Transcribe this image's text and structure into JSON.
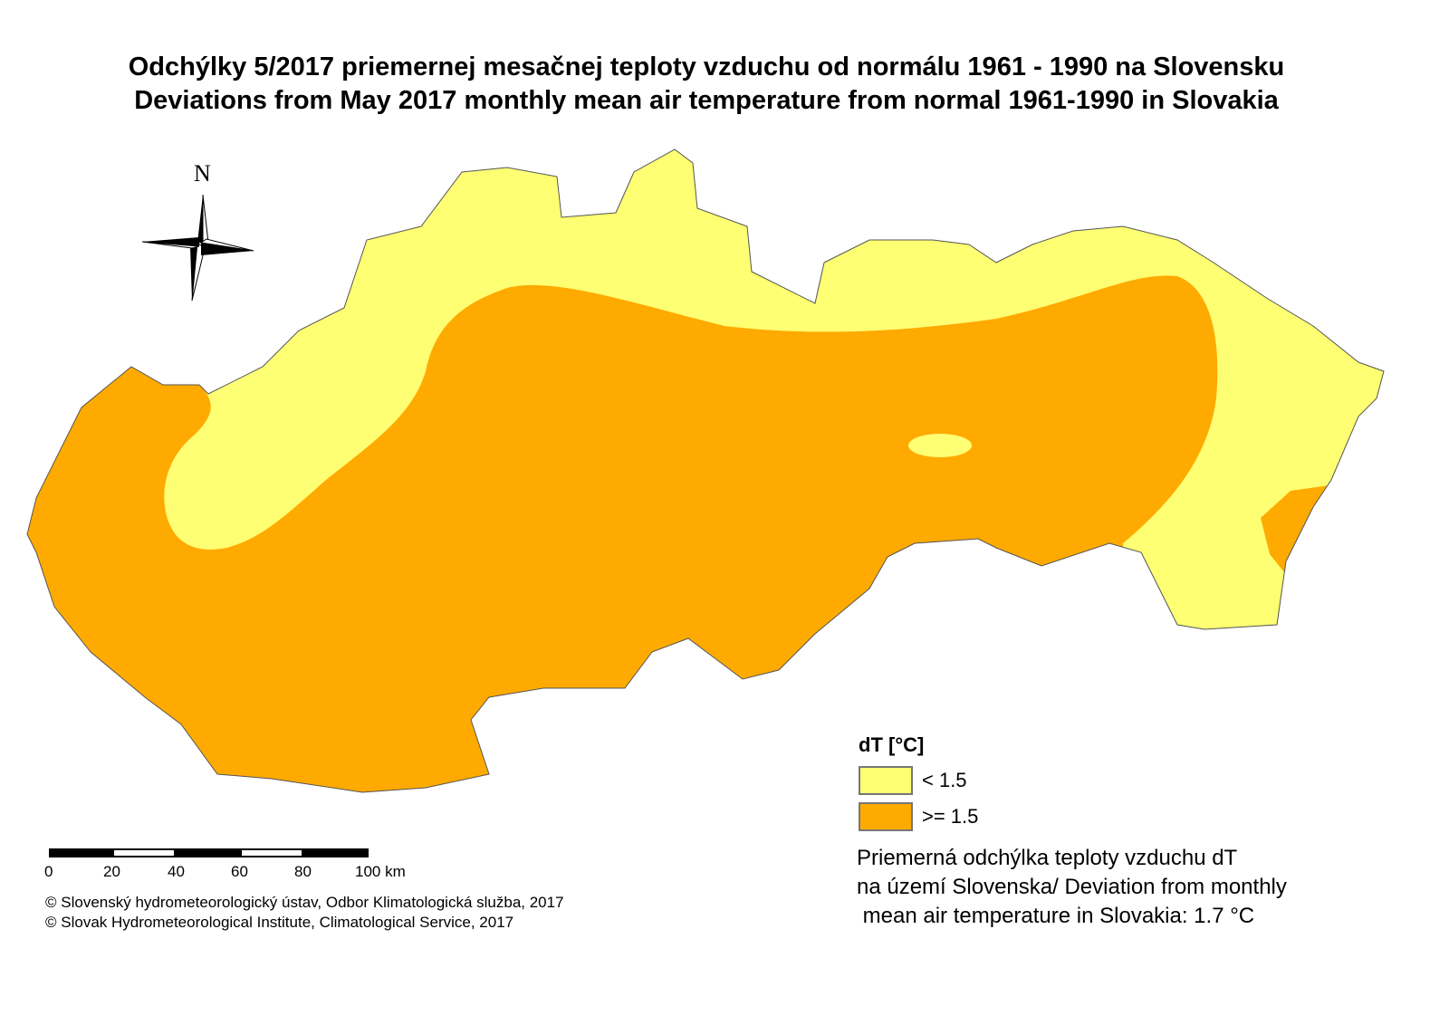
{
  "title": {
    "line1": "Odchýlky 5/2017 priemernej mesačnej teploty vzduchu od normálu 1961 - 1990 na Slovensku",
    "line2": "Deviations from May 2017 monthly mean air temperature from normal 1961-1990 in Slovakia"
  },
  "north_arrow": {
    "label": "N"
  },
  "legend": {
    "title": "dT [°C]",
    "classes": [
      {
        "label": "< 1.5",
        "color": "#FFFF73"
      },
      {
        "label": ">= 1.5",
        "color": "#FFAA00"
      }
    ]
  },
  "summary": {
    "line1": "Priemerná odchýlka teploty vzduchu dT",
    "line2": "na území Slovenska/ Deviation from monthly",
    "line3": " mean air temperature in Slovakia: 1.7 °C"
  },
  "scale_bar": {
    "ticks": [
      "0",
      "20",
      "40",
      "60",
      "80",
      "100 km"
    ]
  },
  "credits": {
    "line1": "© Slovenský hydrometeorologický ústav, Odbor Klimatologická služba, 2017",
    "line2": "© Slovak Hydrometeorological Institute, Climatological Service, 2017"
  }
}
